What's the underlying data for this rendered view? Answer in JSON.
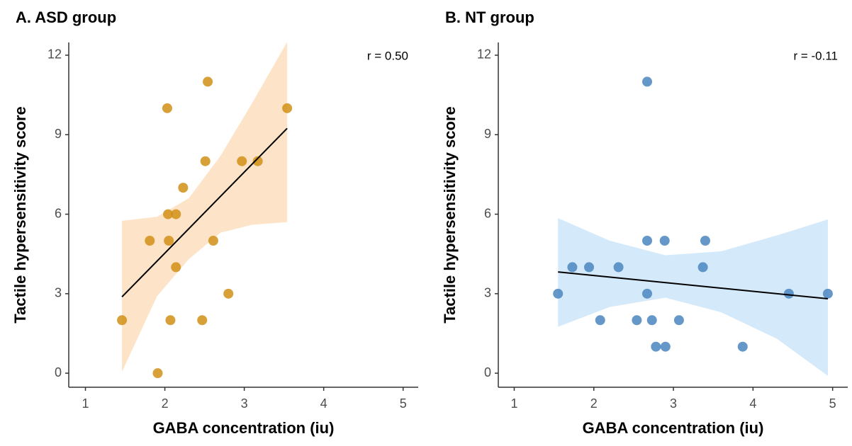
{
  "chart_data": [
    {
      "type": "scatter",
      "title": "A. ASD group",
      "xlabel": "GABA concentration (iu)",
      "ylabel": "Tactile hypersensitivity score",
      "annotation": "r = 0.50",
      "color": "#d18f16",
      "band_color": "#fde4c8",
      "x": [
        1.46,
        1.91,
        2.03,
        1.81,
        2.04,
        2.14,
        2.05,
        2.14,
        2.07,
        2.23,
        2.54,
        2.51,
        2.47,
        2.61,
        2.8,
        2.97,
        3.17,
        3.54
      ],
      "y": [
        2,
        0,
        10,
        5,
        6,
        6,
        5,
        4,
        2,
        7,
        11,
        8,
        2,
        5,
        3,
        8,
        8,
        10
      ],
      "fit": {
        "x": [
          1.46,
          3.54
        ],
        "y": [
          2.88,
          9.24
        ]
      },
      "band": {
        "x": [
          1.46,
          1.9,
          2.3,
          2.7,
          3.1,
          3.54
        ],
        "lower": [
          0.05,
          2.9,
          4.3,
          5.3,
          5.6,
          5.7
        ],
        "upper": [
          5.75,
          5.9,
          6.6,
          8.2,
          10.2,
          12.5
        ]
      },
      "xlim": [
        0.79,
        5.19
      ],
      "ylim": [
        -0.53,
        12.48
      ],
      "xticks": [
        1,
        2,
        3,
        4,
        5
      ],
      "yticks": [
        0,
        3,
        6,
        9,
        12
      ]
    },
    {
      "type": "scatter",
      "title": "B. NT group",
      "xlabel": "GABA concentration (iu)",
      "ylabel": "Tactile hypersensitivity score",
      "annotation": "r = -0.11",
      "color": "#4a86be",
      "band_color": "#d4e9fa",
      "x": [
        1.55,
        1.73,
        1.94,
        2.08,
        2.31,
        2.54,
        2.67,
        2.67,
        2.67,
        2.73,
        2.78,
        2.9,
        2.89,
        3.07,
        3.37,
        3.4,
        3.87,
        4.45,
        4.94
      ],
      "y": [
        3,
        4,
        4,
        2,
        4,
        2,
        11,
        5,
        3,
        2,
        1,
        1,
        5,
        2,
        4,
        5,
        1,
        3,
        3
      ],
      "fit": {
        "x": [
          1.55,
          4.94
        ],
        "y": [
          3.82,
          2.81
        ]
      },
      "band": {
        "x": [
          1.55,
          2.2,
          2.9,
          3.6,
          4.3,
          4.94
        ],
        "lower": [
          1.75,
          2.5,
          2.85,
          2.3,
          1.3,
          -0.1
        ],
        "upper": [
          5.85,
          5.0,
          4.45,
          4.6,
          5.2,
          5.8
        ]
      },
      "xlim": [
        0.8,
        5.19
      ],
      "ylim": [
        -0.53,
        12.48
      ],
      "xticks": [
        1,
        2,
        3,
        4,
        5
      ],
      "yticks": [
        0,
        3,
        6,
        9,
        12
      ]
    }
  ]
}
